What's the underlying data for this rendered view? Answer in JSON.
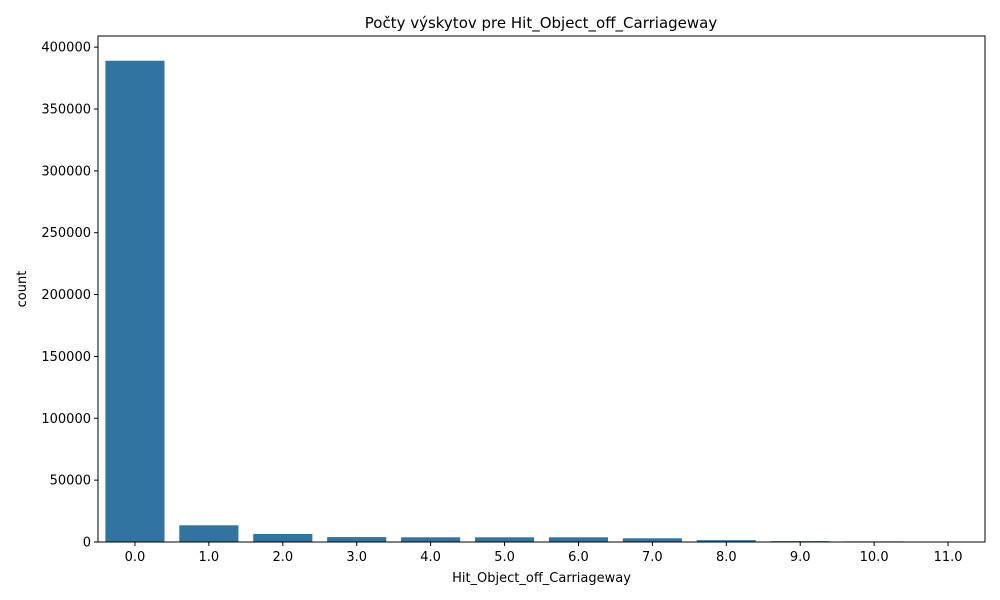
{
  "chart_data": {
    "type": "bar",
    "title": "Počty výskytov pre Hit_Object_off_Carriageway",
    "xlabel": "Hit_Object_off_Carriageway",
    "ylabel": "count",
    "categories": [
      "0.0",
      "1.0",
      "2.0",
      "3.0",
      "4.0",
      "5.0",
      "6.0",
      "7.0",
      "8.0",
      "9.0",
      "10.0",
      "11.0"
    ],
    "values": [
      389000,
      13500,
      6500,
      4000,
      3800,
      3800,
      3800,
      3000,
      1500,
      700,
      500,
      150
    ],
    "ylim": [
      0,
      409000
    ],
    "yticks": [
      0,
      50000,
      100000,
      150000,
      200000,
      250000,
      300000,
      350000,
      400000
    ],
    "ytick_labels": [
      "0",
      "50000",
      "100000",
      "150000",
      "200000",
      "250000",
      "300000",
      "350000",
      "400000"
    ],
    "bar_color": "#3274a1",
    "grid": false,
    "legend": "none"
  }
}
